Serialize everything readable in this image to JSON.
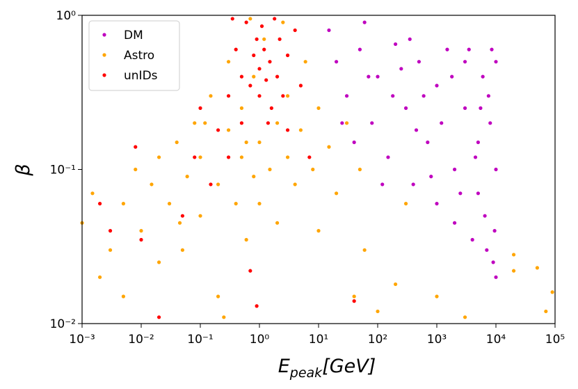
{
  "chart_data": {
    "type": "scatter",
    "xlabel": "E",
    "xlabel_sub": "peak",
    "xlabel_unit": "[GeV]",
    "ylabel": "β",
    "xscale": "log",
    "yscale": "log",
    "xlim": [
      0.001,
      100000
    ],
    "ylim": [
      0.01,
      1
    ],
    "xticks": [
      {
        "value": 0.001,
        "label": "10⁻³"
      },
      {
        "value": 0.01,
        "label": "10⁻²"
      },
      {
        "value": 0.1,
        "label": "10⁻¹"
      },
      {
        "value": 1,
        "label": "10⁰"
      },
      {
        "value": 10,
        "label": "10¹"
      },
      {
        "value": 100,
        "label": "10²"
      },
      {
        "value": 1000,
        "label": "10³"
      },
      {
        "value": 10000,
        "label": "10⁴"
      },
      {
        "value": 100000,
        "label": "10⁵"
      }
    ],
    "yticks": [
      {
        "value": 0.01,
        "label": "10⁻²"
      },
      {
        "value": 0.1,
        "label": "10⁻¹"
      },
      {
        "value": 1,
        "label": "10⁰"
      }
    ],
    "legend": "upper left",
    "series": [
      {
        "name": "DM",
        "color": "#bf00bf",
        "x": [
          20,
          30,
          50,
          80,
          100,
          150,
          200,
          300,
          400,
          500,
          700,
          1000,
          1000,
          1500,
          2000,
          2000,
          3000,
          3000,
          4000,
          5000,
          5000,
          6000,
          7000,
          8000,
          9000,
          10000,
          10000,
          10000,
          15,
          40,
          60,
          120,
          250,
          600,
          800,
          1200,
          2500,
          3500,
          4500,
          6500,
          7500,
          9500,
          350,
          180,
          70,
          25,
          1800,
          5500,
          8500,
          450
        ],
        "values": [
          0.5,
          0.3,
          0.6,
          0.2,
          0.4,
          0.12,
          0.65,
          0.25,
          0.08,
          0.5,
          0.15,
          0.06,
          0.35,
          0.6,
          0.1,
          0.045,
          0.25,
          0.5,
          0.035,
          0.07,
          0.15,
          0.4,
          0.03,
          0.2,
          0.025,
          0.5,
          0.1,
          0.02,
          0.8,
          0.15,
          0.9,
          0.08,
          0.45,
          0.3,
          0.09,
          0.2,
          0.07,
          0.6,
          0.12,
          0.05,
          0.3,
          0.04,
          0.7,
          0.3,
          0.4,
          0.2,
          0.4,
          0.25,
          0.6,
          0.18
        ]
      },
      {
        "name": "Astro",
        "color": "#ffa500",
        "x": [
          0.001,
          0.0015,
          0.002,
          0.003,
          0.005,
          0.005,
          0.008,
          0.01,
          0.015,
          0.02,
          0.02,
          0.03,
          0.04,
          0.05,
          0.06,
          0.08,
          0.1,
          0.1,
          0.15,
          0.2,
          0.2,
          0.3,
          0.3,
          0.4,
          0.5,
          0.5,
          0.6,
          0.8,
          0.8,
          1,
          1,
          1.2,
          1.5,
          2,
          2,
          3,
          3,
          4,
          5,
          6,
          8,
          10,
          10,
          15,
          20,
          30,
          50,
          60,
          100,
          200,
          300,
          1000,
          3000,
          20000,
          20000,
          50000,
          70000,
          90000,
          0.25,
          40,
          0.7,
          2.5,
          0.12,
          0.6,
          0.045
        ],
        "values": [
          0.045,
          0.07,
          0.02,
          0.03,
          0.06,
          0.015,
          0.1,
          0.04,
          0.08,
          0.025,
          0.12,
          0.06,
          0.15,
          0.03,
          0.09,
          0.2,
          0.05,
          0.12,
          0.3,
          0.08,
          0.015,
          0.18,
          0.5,
          0.06,
          0.12,
          0.25,
          0.035,
          0.09,
          0.4,
          0.15,
          0.06,
          0.7,
          0.1,
          0.2,
          0.045,
          0.12,
          0.3,
          0.08,
          0.18,
          0.5,
          0.1,
          0.25,
          0.04,
          0.14,
          0.07,
          0.2,
          0.1,
          0.03,
          0.012,
          0.018,
          0.06,
          0.015,
          0.011,
          0.028,
          0.022,
          0.023,
          0.012,
          0.016,
          0.011,
          0.015,
          0.95,
          0.9,
          0.2,
          0.15,
          0.045
        ]
      },
      {
        "name": "unIDs",
        "color": "#ff0000",
        "x": [
          0.002,
          0.003,
          0.008,
          0.01,
          0.02,
          0.05,
          0.08,
          0.1,
          0.15,
          0.2,
          0.3,
          0.3,
          0.4,
          0.5,
          0.5,
          0.6,
          0.7,
          0.8,
          0.9,
          1,
          1,
          1.1,
          1.2,
          1.3,
          1.5,
          1.6,
          1.8,
          2,
          2.2,
          2.5,
          3,
          3,
          4,
          5,
          0.7,
          0.9,
          40,
          7,
          0.35,
          1.4
        ],
        "values": [
          0.06,
          0.04,
          0.14,
          0.035,
          0.011,
          0.05,
          0.12,
          0.25,
          0.08,
          0.18,
          0.3,
          0.12,
          0.6,
          0.4,
          0.2,
          0.9,
          0.35,
          0.55,
          0.7,
          0.45,
          0.3,
          0.85,
          0.6,
          0.38,
          0.5,
          0.25,
          0.95,
          0.4,
          0.7,
          0.3,
          0.55,
          0.18,
          0.8,
          0.35,
          0.022,
          0.013,
          0.014,
          0.12,
          0.95,
          0.2
        ]
      }
    ]
  }
}
